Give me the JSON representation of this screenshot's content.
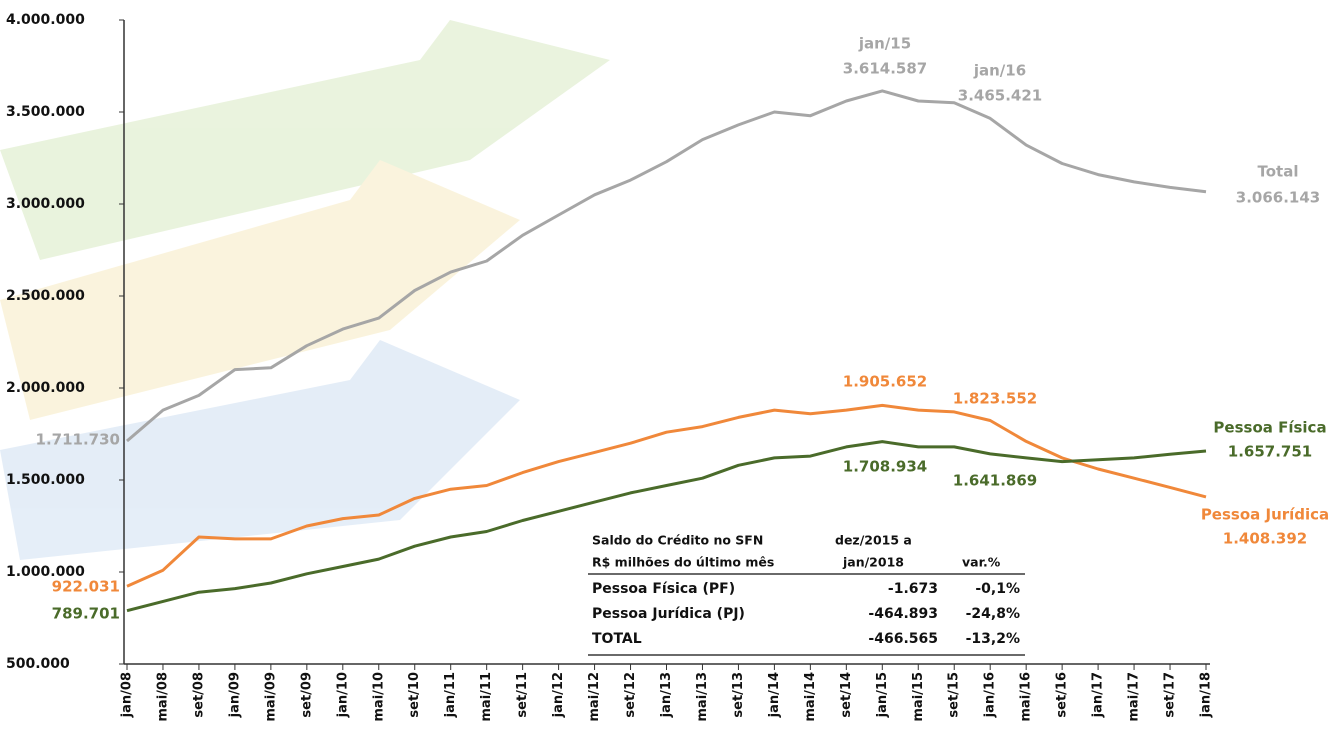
{
  "chart_data": {
    "type": "line",
    "categories": [
      "jan/08",
      "mai/08",
      "set/08",
      "jan/09",
      "mai/09",
      "set/09",
      "jan/10",
      "mai/10",
      "set/10",
      "jan/11",
      "mai/11",
      "set/11",
      "jan/12",
      "mai/12",
      "set/12",
      "jan/13",
      "mai/13",
      "set/13",
      "jan/14",
      "mai/14",
      "set/14",
      "jan/15",
      "mai/15",
      "set/15",
      "jan/16",
      "mai/16",
      "set/16",
      "jan/17",
      "mai/17",
      "set/17",
      "jan/18"
    ],
    "series": [
      {
        "name": "Total",
        "color": "#a6a6a6",
        "values": [
          1711730,
          1880000,
          1960000,
          2100000,
          2110000,
          2230000,
          2320000,
          2380000,
          2530000,
          2630000,
          2690000,
          2830000,
          2940000,
          3050000,
          3130000,
          3230000,
          3350000,
          3430000,
          3500000,
          3480000,
          3560000,
          3614587,
          3560000,
          3550000,
          3465421,
          3320000,
          3220000,
          3160000,
          3120000,
          3090000,
          3066143
        ]
      },
      {
        "name": "Pessoa Jurídica",
        "color": "#f0883a",
        "values": [
          922031,
          1010000,
          1190000,
          1180000,
          1180000,
          1250000,
          1290000,
          1310000,
          1400000,
          1450000,
          1470000,
          1540000,
          1600000,
          1650000,
          1700000,
          1760000,
          1790000,
          1840000,
          1880000,
          1860000,
          1880000,
          1905652,
          1880000,
          1870000,
          1823552,
          1710000,
          1620000,
          1560000,
          1510000,
          1460000,
          1408392
        ]
      },
      {
        "name": "Pessoa Física",
        "color": "#4a6b2a",
        "values": [
          789701,
          840000,
          890000,
          910000,
          940000,
          990000,
          1030000,
          1070000,
          1140000,
          1190000,
          1220000,
          1280000,
          1330000,
          1380000,
          1430000,
          1470000,
          1510000,
          1580000,
          1620000,
          1630000,
          1680000,
          1708934,
          1680000,
          1680000,
          1641869,
          1620000,
          1600000,
          1610000,
          1620000,
          1640000,
          1657751
        ]
      }
    ],
    "ylim": [
      500000,
      4000000
    ],
    "yticks": [
      {
        "value": 500000,
        "label": "500.000"
      },
      {
        "value": 1000000,
        "label": "1.000.000"
      },
      {
        "value": 1500000,
        "label": "1.500.000"
      },
      {
        "value": 2000000,
        "label": "2.000.000"
      },
      {
        "value": 2500000,
        "label": "2.500.000"
      },
      {
        "value": 3000000,
        "label": "3.000.000"
      },
      {
        "value": 3500000,
        "label": "3.500.000"
      },
      {
        "value": 4000000,
        "label": "4.000.000"
      }
    ],
    "grid": false,
    "annotations": [
      {
        "text": "1.711.730"
      },
      {
        "text": "jan/15"
      },
      {
        "text": "3.614.587"
      },
      {
        "text": "jan/16"
      },
      {
        "text": "3.465.421"
      },
      {
        "text": "3.066.143"
      },
      {
        "text": "922.031"
      },
      {
        "text": "1.905.652"
      },
      {
        "text": "1.823.552"
      },
      {
        "text": "1.408.392"
      },
      {
        "text": "789.701"
      },
      {
        "text": "1.708.934"
      },
      {
        "text": "1.641.869"
      },
      {
        "text": "1.657.751"
      }
    ],
    "table": {
      "title_lines": [
        "Saldo do Crédito no SFN",
        "R$ milhões do último mês"
      ],
      "period_lines": [
        "dez/2015 a",
        "jan/2018"
      ],
      "pct_header": "var.%",
      "rows": [
        {
          "label": "Pessoa Física (PF)",
          "change": "-1.673",
          "pct": "-0,1%",
          "color": "#4a6b2a"
        },
        {
          "label": "Pessoa Jurídica (PJ)",
          "change": "-464.893",
          "pct": "-24,8%",
          "color": "#f0883a"
        },
        {
          "label": "TOTAL",
          "change": "-466.565",
          "pct": "-13,2%",
          "color": "#a6a6a6"
        }
      ]
    }
  }
}
